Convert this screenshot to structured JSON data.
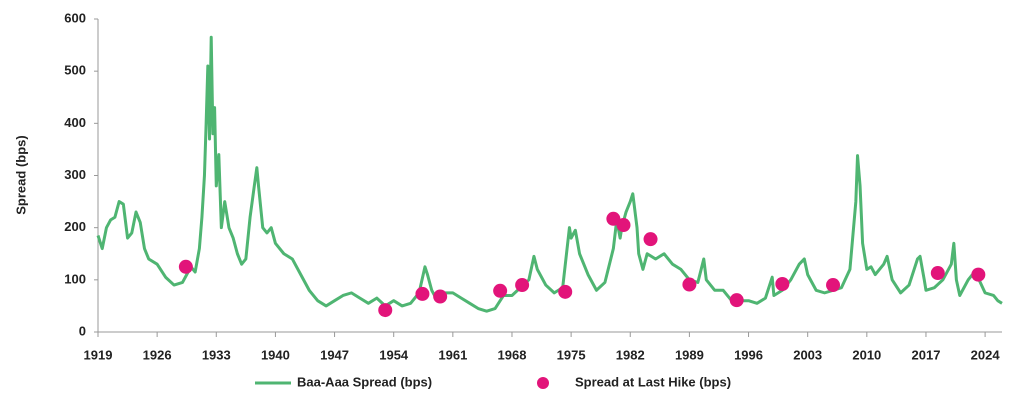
{
  "chart_data": {
    "type": "line",
    "ylabel": "Spread (bps)",
    "xlim": [
      1919,
      2026
    ],
    "xticks": [
      1919,
      1926,
      1933,
      1940,
      1947,
      1954,
      1961,
      1968,
      1975,
      1982,
      1989,
      1996,
      2003,
      2010,
      2017,
      2024
    ],
    "ylim": [
      0,
      600
    ],
    "yticks": [
      0,
      100,
      200,
      300,
      400,
      500,
      600
    ],
    "legend": "bottom",
    "series": [
      {
        "name": "Baa-Aaa Spread (bps)",
        "type": "line",
        "color": "#4fb572",
        "x": [
          1919,
          1919.5,
          1920,
          1920.5,
          1921,
          1921.5,
          1922,
          1922.5,
          1923,
          1923.5,
          1924,
          1924.5,
          1925,
          1926,
          1927,
          1928,
          1929,
          1929.5,
          1930,
          1930.5,
          1931,
          1931.3,
          1931.6,
          1931.8,
          1932,
          1932.2,
          1932.4,
          1932.6,
          1932.8,
          1933,
          1933.3,
          1933.6,
          1934,
          1934.5,
          1935,
          1935.5,
          1936,
          1936.5,
          1937,
          1937.5,
          1937.8,
          1938,
          1938.5,
          1939,
          1939.5,
          1940,
          1941,
          1942,
          1943,
          1944,
          1945,
          1946,
          1947,
          1948,
          1949,
          1950,
          1951,
          1952,
          1953,
          1954,
          1955,
          1956,
          1957,
          1957.7,
          1958,
          1958.5,
          1959,
          1960,
          1961,
          1962,
          1963,
          1964,
          1965,
          1966,
          1967,
          1968,
          1969,
          1970,
          1970.6,
          1971,
          1972,
          1973,
          1974,
          1974.8,
          1975,
          1975.5,
          1976,
          1977,
          1978,
          1979,
          1980,
          1980.4,
          1980.8,
          1981,
          1981.5,
          1982,
          1982.3,
          1982.8,
          1983,
          1983.5,
          1984,
          1985,
          1986,
          1987,
          1988,
          1989,
          1990,
          1990.7,
          1991,
          1992,
          1993,
          1994,
          1995,
          1996,
          1997,
          1998,
          1998.8,
          1999,
          2000,
          2001,
          2002,
          2002.6,
          2003,
          2004,
          2005,
          2006,
          2007,
          2008,
          2008.7,
          2008.9,
          2009.2,
          2009.5,
          2010,
          2010.5,
          2011,
          2012,
          2012.4,
          2013,
          2014,
          2015,
          2016,
          2016.3,
          2016.8,
          2017,
          2018,
          2019,
          2020,
          2020.3,
          2020.6,
          2021,
          2022,
          2022.5,
          2023,
          2024,
          2025,
          2025.5,
          2026
        ],
        "values": [
          185,
          160,
          200,
          215,
          220,
          250,
          245,
          180,
          190,
          230,
          210,
          160,
          140,
          130,
          105,
          90,
          95,
          110,
          125,
          115,
          160,
          220,
          300,
          400,
          510,
          370,
          565,
          380,
          430,
          280,
          340,
          200,
          250,
          200,
          180,
          150,
          130,
          140,
          220,
          280,
          315,
          280,
          200,
          190,
          200,
          170,
          150,
          140,
          110,
          80,
          60,
          50,
          60,
          70,
          75,
          65,
          55,
          65,
          50,
          60,
          50,
          55,
          75,
          125,
          110,
          80,
          65,
          75,
          75,
          65,
          55,
          45,
          40,
          45,
          70,
          70,
          85,
          100,
          145,
          120,
          90,
          75,
          85,
          200,
          180,
          195,
          150,
          110,
          80,
          95,
          160,
          215,
          180,
          200,
          230,
          250,
          265,
          200,
          150,
          120,
          150,
          140,
          150,
          130,
          120,
          100,
          95,
          140,
          100,
          80,
          80,
          60,
          60,
          60,
          55,
          65,
          105,
          70,
          80,
          100,
          130,
          140,
          110,
          80,
          75,
          80,
          85,
          120,
          250,
          338,
          280,
          170,
          120,
          125,
          110,
          130,
          145,
          100,
          75,
          90,
          140,
          145,
          100,
          80,
          85,
          100,
          130,
          170,
          100,
          70,
          100,
          110,
          110,
          75,
          70,
          60,
          55
        ]
      },
      {
        "name": "Spread at Last Hike (bps)",
        "type": "scatter",
        "color": "#e2147a",
        "x": [
          1929.4,
          1953.0,
          1957.4,
          1959.5,
          1966.6,
          1969.2,
          1974.3,
          1980.0,
          1981.2,
          1984.4,
          1989.0,
          1994.6,
          2000.0,
          2006.0,
          2018.4,
          2023.2
        ],
        "values": [
          125,
          42,
          73,
          68,
          79,
          90,
          77,
          217,
          205,
          178,
          91,
          61,
          92,
          90,
          113,
          110
        ]
      }
    ]
  }
}
